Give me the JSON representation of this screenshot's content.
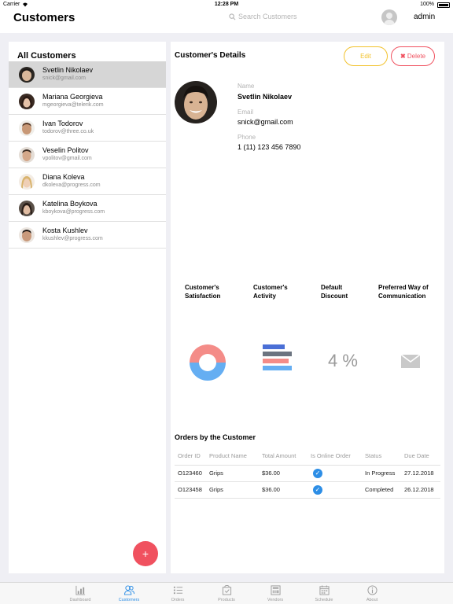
{
  "status_bar": {
    "carrier": "Carrier",
    "time": "12:28 PM",
    "battery": "100%"
  },
  "header": {
    "title": "Customers",
    "search_placeholder": "Search Customers",
    "user": "admin"
  },
  "customers_panel": {
    "title": "All Customers",
    "add_button": "+",
    "items": [
      {
        "name": "Svetlin Nikolaev",
        "email": "snick@gmail.com",
        "selected": true
      },
      {
        "name": "Mariana Georgieva",
        "email": "mgeorgieva@telerik.com"
      },
      {
        "name": "Ivan Todorov",
        "email": "todorov@three.co.uk"
      },
      {
        "name": "Veselin Politov",
        "email": "vpolitov@gmail.com"
      },
      {
        "name": "Diana Koleva",
        "email": "dkoleva@progress.com"
      },
      {
        "name": "Katelina Boykova",
        "email": "kboykova@progress.com"
      },
      {
        "name": "Kosta Kushlev",
        "email": "kkushlev@progress.com"
      }
    ]
  },
  "details": {
    "title": "Customer's Details",
    "edit_label": "Edit",
    "delete_label": "Delete",
    "delete_icon": "✖",
    "name_label": "Name",
    "name_value": "Svetlin Nikolaev",
    "email_label": "Email",
    "email_value": "snick@gmail.com",
    "phone_label": "Phone",
    "phone_value": "1 (11) 123 456 7890"
  },
  "stats": {
    "satisfaction_label": "Customer's Satisfaction",
    "activity_label": "Customer's Activity",
    "discount_label": "Default Discount",
    "communication_label": "Preferred Way of Communication",
    "discount_value": "4 %",
    "communication_icon": "mail-icon",
    "satisfaction_colors": {
      "positive": "#65aef2",
      "negative": "#f48c88"
    },
    "activity_colors": [
      "#4a6fd6",
      "#6c7480",
      "#f48c88",
      "#65aef2"
    ]
  },
  "orders": {
    "title": "Orders by the Customer",
    "columns": [
      "Order ID",
      "Product Name",
      "Total Amount",
      "Is Online Order",
      "Status",
      "Due Date"
    ],
    "rows": [
      {
        "id": "O123460",
        "product": "Grips",
        "amount": "$36.00",
        "online": true,
        "status": "In Progress",
        "due": "27.12.2018"
      },
      {
        "id": "O123458",
        "product": "Grips",
        "amount": "$36.00",
        "online": true,
        "status": "Completed",
        "due": "26.12.2018"
      }
    ]
  },
  "tabs": [
    {
      "label": "Dashboard",
      "icon": "dashboard-icon"
    },
    {
      "label": "Customers",
      "icon": "customers-icon",
      "active": true
    },
    {
      "label": "Orders",
      "icon": "orders-icon"
    },
    {
      "label": "Products",
      "icon": "products-icon"
    },
    {
      "label": "Vendors",
      "icon": "vendors-icon"
    },
    {
      "label": "Schedule",
      "icon": "schedule-icon"
    },
    {
      "label": "About",
      "icon": "about-icon"
    }
  ],
  "colors": {
    "accent": "#2d8ee6",
    "edit": "#f2c22c",
    "delete": "#f0515f"
  }
}
